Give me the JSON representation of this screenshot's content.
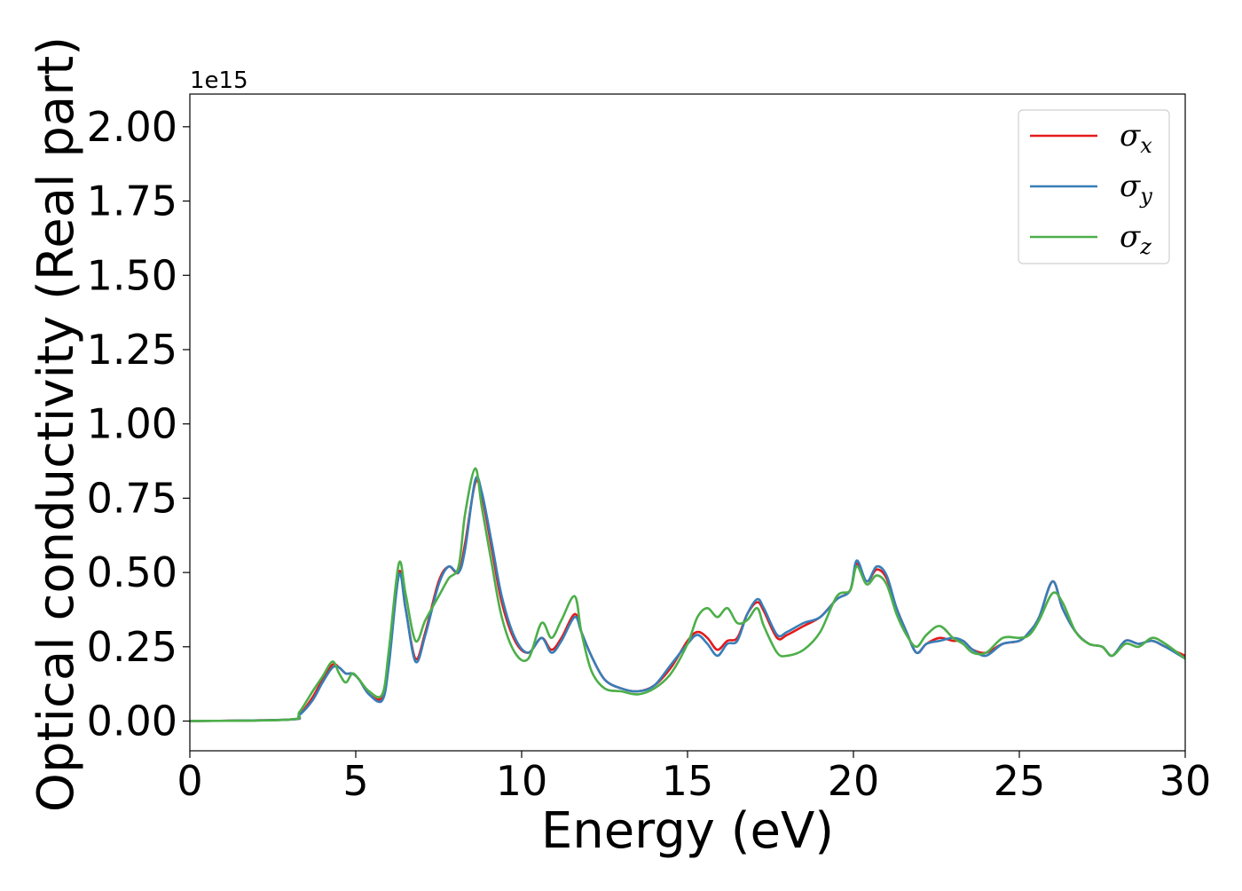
{
  "chart_data": {
    "type": "line",
    "xlabel": "Energy (eV)",
    "ylabel": "Optical conductivity (Real part)",
    "y_offset_text": "1e15",
    "xlim": [
      0,
      30
    ],
    "ylim": [
      -0.1,
      2.11
    ],
    "x_ticks": [
      0,
      5,
      10,
      15,
      20,
      25,
      30
    ],
    "x_tick_labels": [
      "0",
      "5",
      "10",
      "15",
      "20",
      "25",
      "30"
    ],
    "y_ticks": [
      0.0,
      0.25,
      0.5,
      0.75,
      1.0,
      1.25,
      1.5,
      1.75,
      2.0
    ],
    "y_tick_labels": [
      "0.00",
      "0.25",
      "0.50",
      "0.75",
      "1.00",
      "1.25",
      "1.50",
      "1.75",
      "2.00"
    ],
    "grid": false,
    "legend_position": "top-right",
    "series": [
      {
        "name": "σx",
        "symbol": "σ",
        "subscript": "x",
        "color": "#e41a1c",
        "points": [
          [
            0,
            0
          ],
          [
            3,
            0.005
          ],
          [
            3.3,
            0.02
          ],
          [
            3.7,
            0.08
          ],
          [
            4,
            0.14
          ],
          [
            4.3,
            0.19
          ],
          [
            4.5,
            0.18
          ],
          [
            4.7,
            0.16
          ],
          [
            4.9,
            0.16
          ],
          [
            5.1,
            0.14
          ],
          [
            5.4,
            0.09
          ],
          [
            5.8,
            0.08
          ],
          [
            6,
            0.2
          ],
          [
            6.3,
            0.5
          ],
          [
            6.5,
            0.38
          ],
          [
            6.8,
            0.21
          ],
          [
            7.1,
            0.3
          ],
          [
            7.5,
            0.47
          ],
          [
            7.8,
            0.52
          ],
          [
            8.1,
            0.5
          ],
          [
            8.3,
            0.6
          ],
          [
            8.6,
            0.8
          ],
          [
            8.8,
            0.76
          ],
          [
            9.1,
            0.58
          ],
          [
            9.4,
            0.4
          ],
          [
            9.8,
            0.27
          ],
          [
            10.2,
            0.23
          ],
          [
            10.6,
            0.28
          ],
          [
            10.9,
            0.24
          ],
          [
            11.2,
            0.28
          ],
          [
            11.6,
            0.36
          ],
          [
            11.8,
            0.3
          ],
          [
            12.1,
            0.22
          ],
          [
            12.5,
            0.14
          ],
          [
            13,
            0.11
          ],
          [
            13.5,
            0.1
          ],
          [
            14,
            0.12
          ],
          [
            14.5,
            0.18
          ],
          [
            15,
            0.27
          ],
          [
            15.3,
            0.3
          ],
          [
            15.6,
            0.28
          ],
          [
            15.9,
            0.24
          ],
          [
            16.2,
            0.27
          ],
          [
            16.5,
            0.28
          ],
          [
            16.8,
            0.36
          ],
          [
            17.1,
            0.4
          ],
          [
            17.3,
            0.37
          ],
          [
            17.7,
            0.28
          ],
          [
            18,
            0.29
          ],
          [
            18.5,
            0.32
          ],
          [
            19,
            0.35
          ],
          [
            19.5,
            0.41
          ],
          [
            19.9,
            0.44
          ],
          [
            20.1,
            0.53
          ],
          [
            20.4,
            0.47
          ],
          [
            20.7,
            0.51
          ],
          [
            21,
            0.48
          ],
          [
            21.3,
            0.38
          ],
          [
            21.6,
            0.3
          ],
          [
            21.9,
            0.23
          ],
          [
            22.2,
            0.26
          ],
          [
            22.6,
            0.28
          ],
          [
            23,
            0.27
          ],
          [
            23.3,
            0.27
          ],
          [
            23.6,
            0.24
          ],
          [
            24,
            0.23
          ],
          [
            24.5,
            0.26
          ],
          [
            25,
            0.27
          ],
          [
            25.3,
            0.3
          ],
          [
            25.6,
            0.35
          ],
          [
            26,
            0.47
          ],
          [
            26.3,
            0.38
          ],
          [
            26.7,
            0.3
          ],
          [
            27.1,
            0.26
          ],
          [
            27.5,
            0.25
          ],
          [
            27.8,
            0.22
          ],
          [
            28.2,
            0.27
          ],
          [
            28.6,
            0.26
          ],
          [
            29,
            0.27
          ],
          [
            29.4,
            0.25
          ],
          [
            30,
            0.22
          ]
        ]
      },
      {
        "name": "σy",
        "symbol": "σ",
        "subscript": "y",
        "color": "#377eb8",
        "points": [
          [
            0,
            0
          ],
          [
            3,
            0.005
          ],
          [
            3.3,
            0.02
          ],
          [
            3.7,
            0.07
          ],
          [
            4,
            0.13
          ],
          [
            4.3,
            0.18
          ],
          [
            4.5,
            0.18
          ],
          [
            4.7,
            0.16
          ],
          [
            4.9,
            0.16
          ],
          [
            5.1,
            0.14
          ],
          [
            5.4,
            0.09
          ],
          [
            5.8,
            0.07
          ],
          [
            6,
            0.19
          ],
          [
            6.3,
            0.49
          ],
          [
            6.5,
            0.38
          ],
          [
            6.8,
            0.2
          ],
          [
            7.1,
            0.29
          ],
          [
            7.5,
            0.46
          ],
          [
            7.8,
            0.52
          ],
          [
            8.1,
            0.5
          ],
          [
            8.3,
            0.58
          ],
          [
            8.6,
            0.81
          ],
          [
            8.8,
            0.77
          ],
          [
            9.1,
            0.6
          ],
          [
            9.4,
            0.42
          ],
          [
            9.8,
            0.28
          ],
          [
            10.2,
            0.23
          ],
          [
            10.6,
            0.28
          ],
          [
            10.9,
            0.23
          ],
          [
            11.2,
            0.27
          ],
          [
            11.6,
            0.35
          ],
          [
            11.8,
            0.3
          ],
          [
            12.1,
            0.22
          ],
          [
            12.5,
            0.14
          ],
          [
            13,
            0.11
          ],
          [
            13.5,
            0.1
          ],
          [
            14,
            0.12
          ],
          [
            14.5,
            0.19
          ],
          [
            15,
            0.26
          ],
          [
            15.3,
            0.29
          ],
          [
            15.6,
            0.26
          ],
          [
            15.9,
            0.22
          ],
          [
            16.2,
            0.26
          ],
          [
            16.5,
            0.27
          ],
          [
            16.8,
            0.36
          ],
          [
            17.1,
            0.41
          ],
          [
            17.3,
            0.38
          ],
          [
            17.7,
            0.29
          ],
          [
            18,
            0.3
          ],
          [
            18.5,
            0.33
          ],
          [
            19,
            0.35
          ],
          [
            19.5,
            0.41
          ],
          [
            19.9,
            0.44
          ],
          [
            20.1,
            0.54
          ],
          [
            20.4,
            0.47
          ],
          [
            20.7,
            0.52
          ],
          [
            21,
            0.49
          ],
          [
            21.3,
            0.38
          ],
          [
            21.6,
            0.3
          ],
          [
            21.9,
            0.23
          ],
          [
            22.2,
            0.26
          ],
          [
            22.6,
            0.27
          ],
          [
            23,
            0.28
          ],
          [
            23.3,
            0.27
          ],
          [
            23.6,
            0.24
          ],
          [
            24,
            0.22
          ],
          [
            24.5,
            0.26
          ],
          [
            25,
            0.27
          ],
          [
            25.3,
            0.3
          ],
          [
            25.6,
            0.35
          ],
          [
            26,
            0.47
          ],
          [
            26.3,
            0.38
          ],
          [
            26.7,
            0.3
          ],
          [
            27.1,
            0.26
          ],
          [
            27.5,
            0.25
          ],
          [
            27.8,
            0.22
          ],
          [
            28.2,
            0.27
          ],
          [
            28.6,
            0.26
          ],
          [
            29,
            0.27
          ],
          [
            29.4,
            0.25
          ],
          [
            30,
            0.21
          ]
        ]
      },
      {
        "name": "σz",
        "symbol": "σ",
        "subscript": "z",
        "color": "#4daf4a",
        "points": [
          [
            0,
            0
          ],
          [
            3,
            0.005
          ],
          [
            3.3,
            0.03
          ],
          [
            3.7,
            0.1
          ],
          [
            4,
            0.15
          ],
          [
            4.3,
            0.2
          ],
          [
            4.5,
            0.16
          ],
          [
            4.7,
            0.13
          ],
          [
            4.9,
            0.16
          ],
          [
            5.1,
            0.14
          ],
          [
            5.4,
            0.1
          ],
          [
            5.8,
            0.09
          ],
          [
            6,
            0.24
          ],
          [
            6.3,
            0.53
          ],
          [
            6.5,
            0.43
          ],
          [
            6.8,
            0.27
          ],
          [
            7.1,
            0.34
          ],
          [
            7.5,
            0.42
          ],
          [
            7.8,
            0.48
          ],
          [
            8.1,
            0.52
          ],
          [
            8.3,
            0.7
          ],
          [
            8.6,
            0.85
          ],
          [
            8.8,
            0.72
          ],
          [
            9.1,
            0.53
          ],
          [
            9.4,
            0.35
          ],
          [
            9.8,
            0.23
          ],
          [
            10.2,
            0.21
          ],
          [
            10.6,
            0.33
          ],
          [
            10.9,
            0.28
          ],
          [
            11.2,
            0.34
          ],
          [
            11.6,
            0.42
          ],
          [
            11.8,
            0.3
          ],
          [
            12.1,
            0.17
          ],
          [
            12.5,
            0.11
          ],
          [
            13,
            0.1
          ],
          [
            13.5,
            0.09
          ],
          [
            14,
            0.11
          ],
          [
            14.5,
            0.16
          ],
          [
            15,
            0.26
          ],
          [
            15.3,
            0.35
          ],
          [
            15.6,
            0.38
          ],
          [
            15.9,
            0.35
          ],
          [
            16.2,
            0.38
          ],
          [
            16.5,
            0.33
          ],
          [
            16.8,
            0.34
          ],
          [
            17.1,
            0.38
          ],
          [
            17.3,
            0.32
          ],
          [
            17.7,
            0.23
          ],
          [
            18,
            0.22
          ],
          [
            18.5,
            0.24
          ],
          [
            19,
            0.3
          ],
          [
            19.5,
            0.42
          ],
          [
            19.9,
            0.44
          ],
          [
            20.1,
            0.52
          ],
          [
            20.4,
            0.46
          ],
          [
            20.7,
            0.49
          ],
          [
            21,
            0.46
          ],
          [
            21.3,
            0.36
          ],
          [
            21.6,
            0.29
          ],
          [
            21.9,
            0.25
          ],
          [
            22.2,
            0.29
          ],
          [
            22.6,
            0.32
          ],
          [
            23,
            0.28
          ],
          [
            23.3,
            0.26
          ],
          [
            23.6,
            0.23
          ],
          [
            24,
            0.23
          ],
          [
            24.5,
            0.28
          ],
          [
            25,
            0.28
          ],
          [
            25.3,
            0.29
          ],
          [
            25.6,
            0.34
          ],
          [
            26,
            0.43
          ],
          [
            26.3,
            0.4
          ],
          [
            26.7,
            0.3
          ],
          [
            27.1,
            0.26
          ],
          [
            27.5,
            0.25
          ],
          [
            27.8,
            0.22
          ],
          [
            28.2,
            0.26
          ],
          [
            28.6,
            0.25
          ],
          [
            29,
            0.28
          ],
          [
            29.4,
            0.26
          ],
          [
            30,
            0.21
          ]
        ]
      }
    ]
  }
}
